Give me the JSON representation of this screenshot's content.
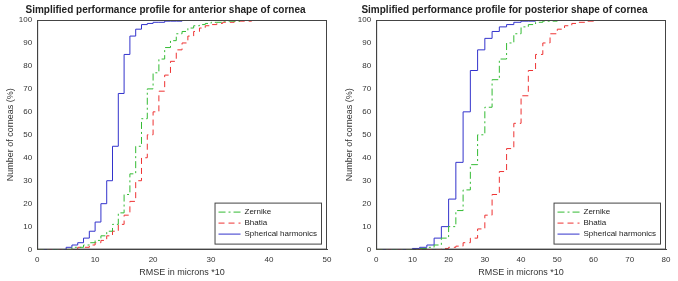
{
  "chart_data": [
    {
      "type": "line",
      "title": "Simplified performance profile for anterior shape of cornea",
      "x_label": "RMSE in microns *10",
      "y_label": "Number of corneas (%)",
      "x": [
        0,
        1,
        2,
        3,
        4,
        5,
        6,
        7,
        8,
        9,
        10,
        11,
        12,
        13,
        14,
        15,
        16,
        17,
        18,
        19,
        20,
        21,
        22,
        23,
        24,
        25,
        26,
        27,
        28,
        29,
        30,
        31,
        32,
        33,
        34,
        35,
        36,
        37,
        38,
        39,
        40,
        41,
        42,
        43,
        44,
        45,
        46,
        47,
        48,
        49,
        50
      ],
      "series": [
        {
          "name": "Zernike",
          "color": "#33bb33",
          "line_style": "dashdot",
          "values": [
            0,
            0,
            0,
            0,
            0,
            0,
            1,
            1,
            2,
            3,
            4,
            6,
            8,
            11,
            16,
            24,
            33,
            45,
            57,
            70,
            77,
            83,
            88,
            91,
            94,
            95,
            96.5,
            97.5,
            98,
            98.5,
            99,
            99,
            99.5,
            99.5,
            99.5,
            100,
            100,
            100,
            100,
            100,
            100,
            100,
            100,
            100,
            100,
            100,
            100,
            100,
            100,
            100,
            100
          ]
        },
        {
          "name": "Bhatia",
          "color": "#ee3333",
          "line_style": "dashed",
          "values": [
            0,
            0,
            0,
            0,
            0,
            0,
            0,
            1,
            1,
            2,
            3,
            4,
            6,
            8,
            11,
            15,
            21,
            30,
            40,
            50,
            60,
            69,
            76,
            82,
            87,
            90,
            93,
            95,
            96.5,
            97.5,
            98,
            98.5,
            99,
            99,
            99.5,
            99.5,
            99.5,
            100,
            100,
            100,
            100,
            100,
            100,
            100,
            100,
            100,
            100,
            100,
            100,
            100,
            100
          ]
        },
        {
          "name": "Spherical harmonics",
          "color": "#3333cc",
          "line_style": "solid",
          "values": [
            0,
            0,
            0,
            0,
            0,
            1,
            2,
            3,
            5,
            8,
            12,
            20,
            30,
            45,
            68,
            85,
            93,
            96,
            98,
            98.5,
            99,
            99,
            99.5,
            99.5,
            99.5,
            100,
            100,
            100,
            100,
            100,
            100,
            100,
            100,
            100,
            100,
            100,
            100,
            100,
            100,
            100,
            100,
            100,
            100,
            100,
            100,
            100,
            100,
            100,
            100,
            100,
            100
          ]
        }
      ],
      "xlim": [
        0,
        50
      ],
      "xticks": [
        0,
        10,
        20,
        30,
        40,
        50
      ],
      "ylim": [
        0,
        100
      ],
      "yticks": [
        0,
        10,
        20,
        30,
        40,
        50,
        60,
        70,
        80,
        90,
        100
      ],
      "grid": false,
      "legend": "lower right"
    },
    {
      "type": "line",
      "title": "Simplified performance profile for posterior shape of cornea",
      "x_label": "RMSE in microns *10",
      "y_label": "Number of corneas (%)",
      "x": [
        0,
        2,
        4,
        6,
        8,
        10,
        12,
        14,
        16,
        18,
        20,
        22,
        24,
        26,
        28,
        30,
        32,
        34,
        36,
        38,
        40,
        42,
        44,
        46,
        48,
        50,
        52,
        54,
        56,
        58,
        60,
        62,
        64,
        66,
        68,
        70,
        72,
        74,
        76,
        78,
        80
      ],
      "series": [
        {
          "name": "Zernike",
          "color": "#33bb33",
          "line_style": "dashdot",
          "values": [
            0,
            0,
            0,
            0,
            0,
            0,
            0.5,
            1,
            2,
            5,
            10,
            17,
            26,
            37,
            50,
            62,
            74,
            83,
            90,
            94,
            97,
            98,
            99,
            99.5,
            99.5,
            100,
            100,
            100,
            100,
            100,
            100,
            100,
            100,
            100,
            100,
            100,
            100,
            100,
            100,
            100,
            100
          ]
        },
        {
          "name": "Bhatia",
          "color": "#ee3333",
          "line_style": "dashed",
          "values": [
            0,
            0,
            0,
            0,
            0,
            0,
            0,
            0,
            0,
            0.5,
            1,
            1.5,
            3,
            5,
            9,
            15,
            24,
            34,
            44,
            55,
            67,
            78,
            85,
            90,
            94,
            96,
            97.5,
            98.5,
            99,
            99.5,
            100,
            100,
            100,
            100,
            100,
            100,
            100,
            100,
            100,
            100,
            100
          ]
        },
        {
          "name": "Spherical harmonics",
          "color": "#3333cc",
          "line_style": "solid",
          "values": [
            0,
            0,
            0,
            0,
            0,
            0.5,
            1,
            2,
            5,
            10,
            22,
            38,
            60,
            78,
            87,
            92,
            95,
            97,
            98,
            99,
            99.5,
            99.5,
            100,
            100,
            100,
            100,
            100,
            100,
            100,
            100,
            100,
            100,
            100,
            100,
            100,
            100,
            100,
            100,
            100,
            100,
            100
          ]
        }
      ],
      "xlim": [
        0,
        80
      ],
      "xticks": [
        0,
        10,
        20,
        30,
        40,
        50,
        60,
        70,
        80
      ],
      "ylim": [
        0,
        100
      ],
      "yticks": [
        0,
        10,
        20,
        30,
        40,
        50,
        60,
        70,
        80,
        90,
        100
      ],
      "grid": false,
      "legend": "lower right"
    }
  ]
}
